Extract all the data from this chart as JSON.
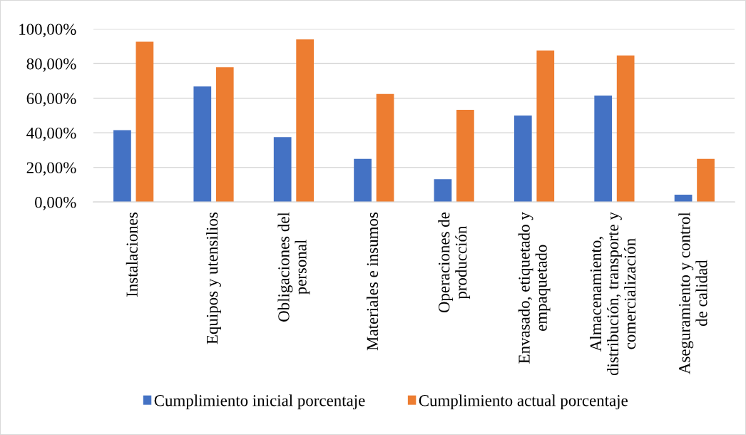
{
  "chart_data": {
    "type": "bar",
    "categories": [
      "Instalaciones",
      "Equipos y utensilios",
      "Obligaciones del\npersonal",
      "Materiales e insumos",
      "Operaciones de\nproducción",
      "Envasado, etiquetado y\nempaquetado",
      "Almacenamiento,\ndistribución, transporte y\ncomercialización",
      "Aseguramiento y control\nde calidad"
    ],
    "series": [
      {
        "name": "Cumplimiento inicial porcentaje",
        "color": "#4472c4",
        "values": [
          41.5,
          66.8,
          37.5,
          25,
          13.2,
          50,
          61.5,
          4.2
        ]
      },
      {
        "name": "Cumplimiento actual porcentaje",
        "color": "#ed7d31",
        "values": [
          92.7,
          77.9,
          94,
          62.5,
          53.3,
          87.6,
          84.7,
          25
        ]
      }
    ],
    "ylim": [
      0,
      100
    ],
    "yticks": [
      {
        "value": 0,
        "label": "0,00%"
      },
      {
        "value": 20,
        "label": "20,00%"
      },
      {
        "value": 40,
        "label": "40,00%"
      },
      {
        "value": 60,
        "label": "60,00%"
      },
      {
        "value": 80,
        "label": "80,00%"
      },
      {
        "value": 100,
        "label": "100,00%"
      }
    ],
    "grid": "y",
    "legend": "bottom"
  }
}
